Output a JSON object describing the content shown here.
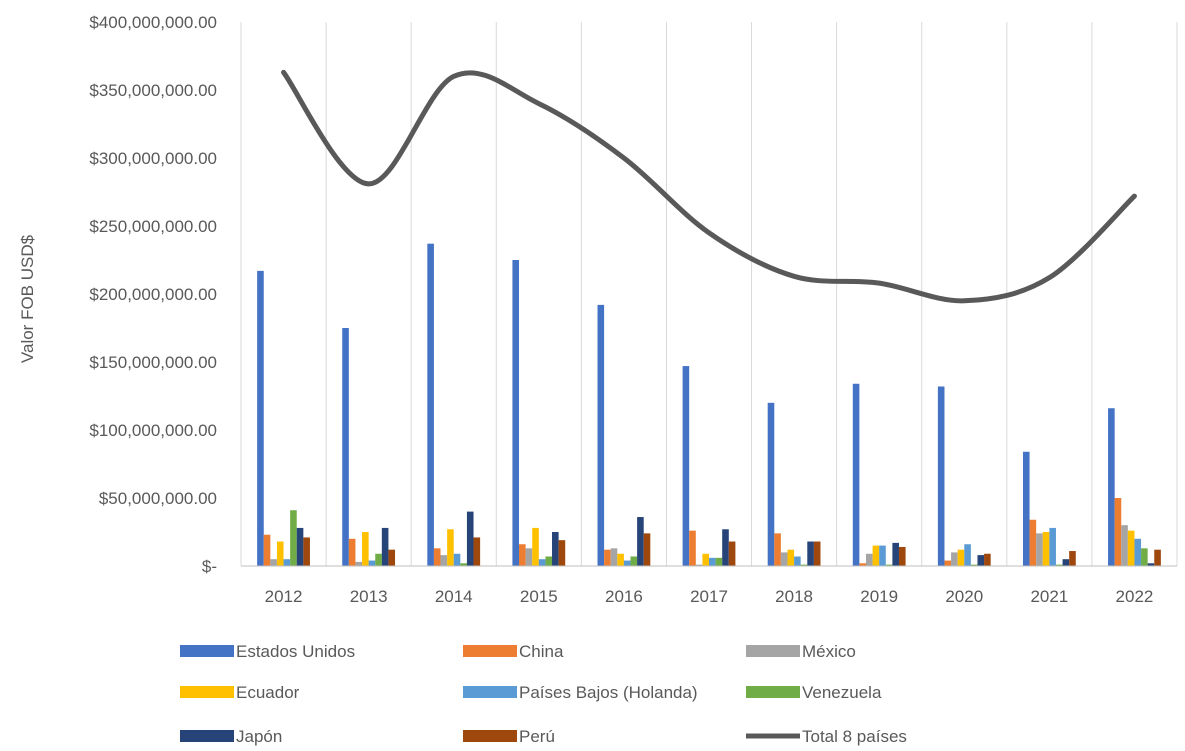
{
  "chart_data": {
    "type": "bar",
    "ylabel": "Valor FOB USD$",
    "xlabel": "",
    "ylim": [
      0,
      400000000
    ],
    "ytick_values": [
      0,
      50000000,
      100000000,
      150000000,
      200000000,
      250000000,
      300000000,
      350000000,
      400000000
    ],
    "ytick_labels": [
      "$-",
      "$50,000,000.00",
      "$100,000,000.00",
      "$150,000,000.00",
      "$200,000,000.00",
      "$250,000,000.00",
      "$300,000,000.00",
      "$350,000,000.00",
      "$400,000,000.00"
    ],
    "categories": [
      "2012",
      "2013",
      "2014",
      "2015",
      "2016",
      "2017",
      "2018",
      "2019",
      "2020",
      "2021",
      "2022"
    ],
    "grid": "vertical",
    "legend_position": "bottom",
    "series": [
      {
        "name": "Estados Unidos",
        "type": "bar",
        "color": "#4472C4",
        "values": [
          217000000,
          175000000,
          237000000,
          225000000,
          192000000,
          147000000,
          120000000,
          134000000,
          132000000,
          84000000,
          116000000
        ]
      },
      {
        "name": "China",
        "type": "bar",
        "color": "#ED7D31",
        "values": [
          23000000,
          20000000,
          13000000,
          16000000,
          12000000,
          26000000,
          24000000,
          2000000,
          4000000,
          34000000,
          50000000
        ]
      },
      {
        "name": "México",
        "type": "bar",
        "color": "#A5A5A5",
        "values": [
          5000000,
          3000000,
          8000000,
          13000000,
          13000000,
          1000000,
          10000000,
          9000000,
          10000000,
          24000000,
          30000000
        ]
      },
      {
        "name": "Ecuador",
        "type": "bar",
        "color": "#FFC000",
        "values": [
          18000000,
          25000000,
          27000000,
          28000000,
          9000000,
          9000000,
          12000000,
          15000000,
          12000000,
          25000000,
          26000000
        ]
      },
      {
        "name": "Países Bajos (Holanda)",
        "type": "bar",
        "color": "#5B9BD5",
        "values": [
          5000000,
          4000000,
          9000000,
          5000000,
          4000000,
          6000000,
          7000000,
          15000000,
          16000000,
          28000000,
          20000000
        ]
      },
      {
        "name": "Venezuela",
        "type": "bar",
        "color": "#70AD47",
        "values": [
          41000000,
          9000000,
          2000000,
          7000000,
          7000000,
          6000000,
          1000000,
          1000000,
          1000000,
          1000000,
          13000000
        ]
      },
      {
        "name": "Japón",
        "type": "bar",
        "color": "#264478",
        "values": [
          28000000,
          28000000,
          40000000,
          25000000,
          36000000,
          27000000,
          18000000,
          17000000,
          8000000,
          5000000,
          2000000
        ]
      },
      {
        "name": "Perú",
        "type": "bar",
        "color": "#9E480E",
        "values": [
          21000000,
          12000000,
          21000000,
          19000000,
          24000000,
          18000000,
          18000000,
          14000000,
          9000000,
          11000000,
          12000000
        ]
      },
      {
        "name": "Total 8 países",
        "type": "line",
        "color": "#595959",
        "values": [
          363000000,
          281000000,
          360000000,
          340000000,
          300000000,
          245000000,
          213000000,
          208000000,
          195000000,
          212000000,
          272000000
        ]
      }
    ]
  }
}
